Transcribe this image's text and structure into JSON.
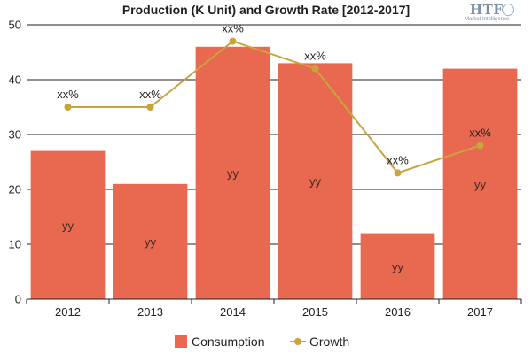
{
  "logo": {
    "brand": "HTF",
    "subtitle": "Market Intelligence"
  },
  "chart_data": {
    "type": "bar",
    "title": "Production (K Unit) and Growth Rate [2012-2017]",
    "xlabel": "",
    "ylabel": "",
    "categories": [
      "2012",
      "2013",
      "2014",
      "2015",
      "2016",
      "2017"
    ],
    "ylim": [
      0,
      50
    ],
    "yticks": [
      0,
      10,
      20,
      30,
      40,
      50
    ],
    "grid": true,
    "legend": "bottom",
    "series": [
      {
        "name": "Consumption",
        "type": "bar",
        "color": "#e8694f",
        "values": [
          27,
          21,
          46,
          43,
          12,
          42
        ],
        "labels": [
          "yy",
          "yy",
          "yy",
          "yy",
          "yy",
          "yy"
        ]
      },
      {
        "name": "Growth",
        "type": "line",
        "color": "#c9a43d",
        "values": [
          35,
          35,
          47,
          42,
          23,
          28
        ],
        "labels": [
          "xx%",
          "xx%",
          "xx%",
          "xx%",
          "xx%",
          "xx%"
        ]
      }
    ]
  }
}
